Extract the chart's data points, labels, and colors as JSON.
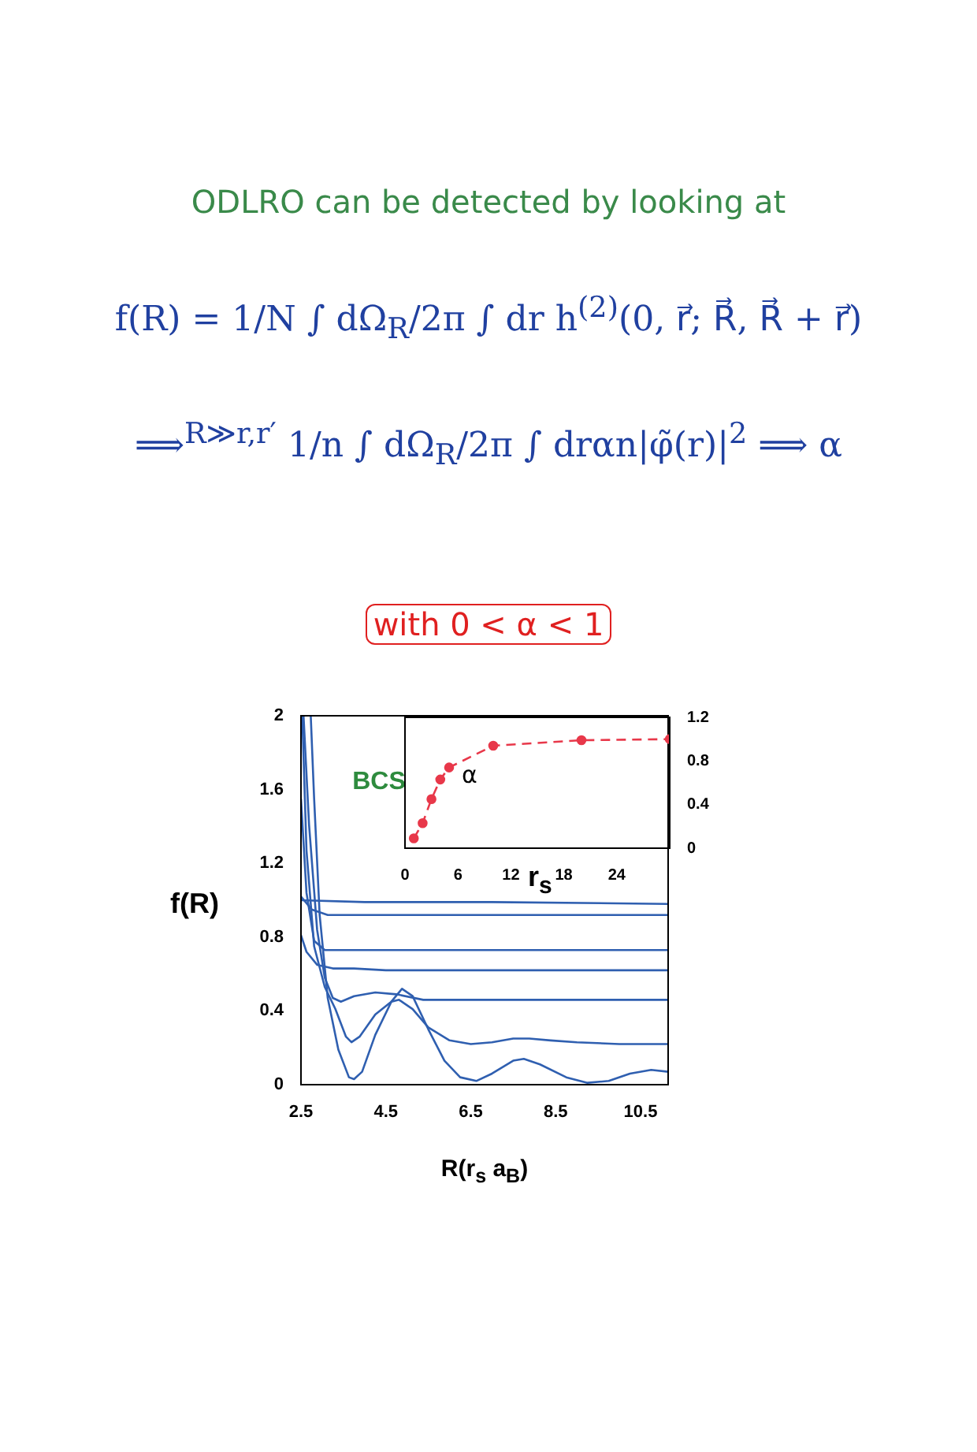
{
  "chart_data": [
    {
      "type": "line",
      "title": "ODLRO can be detected by looking at",
      "annotations": [
        "f(R) = 1/N ∫ dΩ$_{R}$/2π ∫ dr h$^{(2)}$(0, r⃗; R⃗, R⃗ + r⃗)",
        "⟹$^{R≫r,r′}$ 1/n ∫ dΩ$_{R}$/2π ∫ drαn|φ̃(r)|$^{2}$ ⟹ α",
        "with 0 < α < 1",
        "BCS"
      ],
      "xlabel": "R(r$_{s}$ a$_{B}$)",
      "ylabel": "f(R)",
      "xlim": [
        2.5,
        11.15
      ],
      "xticks": [
        2.5,
        4.5,
        6.5,
        8.5,
        10.5
      ],
      "ylim": [
        0,
        2
      ],
      "yticks": [
        0,
        0.4,
        0.8,
        1.2,
        1.6,
        2
      ],
      "grid": false,
      "legend": false,
      "marker": "none",
      "series": [
        {
          "color": "#2f5fb0",
          "x": [
            2.5,
            4.0,
            7.0,
            11.15
          ],
          "values": [
            1.0,
            0.99,
            0.99,
            0.98
          ]
        },
        {
          "color": "#2f5fb0",
          "x": [
            2.5,
            2.75,
            3.13,
            6.0,
            11.15
          ],
          "values": [
            1.02,
            0.95,
            0.92,
            0.92,
            0.92
          ]
        },
        {
          "color": "#2f5fb0",
          "x": [
            2.5,
            2.63,
            2.81,
            3.06,
            3.75,
            11.15
          ],
          "values": [
            1.55,
            1.04,
            0.78,
            0.73,
            0.73,
            0.73
          ]
        },
        {
          "color": "#2f5fb0",
          "x": [
            2.5,
            2.63,
            2.88,
            3.25,
            3.75,
            4.5,
            11.15
          ],
          "values": [
            0.81,
            0.72,
            0.65,
            0.63,
            0.63,
            0.62,
            0.62
          ]
        },
        {
          "color": "#2f5fb0",
          "x": [
            2.56,
            2.69,
            2.88,
            3.06,
            3.25,
            3.44,
            3.75,
            4.25,
            4.75,
            5.38,
            6.25,
            11.15
          ],
          "values": [
            2.0,
            1.41,
            0.84,
            0.58,
            0.47,
            0.45,
            0.48,
            0.5,
            0.49,
            0.46,
            0.46,
            0.46
          ]
        },
        {
          "color": "#2f5fb0",
          "x": [
            2.53,
            2.63,
            2.81,
            3.06,
            3.31,
            3.56,
            3.69,
            3.88,
            4.25,
            4.63,
            4.81,
            5.13,
            5.5,
            6.0,
            6.5,
            7.0,
            7.5,
            7.88,
            8.38,
            9.0,
            10.0,
            11.15
          ],
          "values": [
            2.0,
            1.27,
            0.75,
            0.53,
            0.41,
            0.26,
            0.23,
            0.26,
            0.38,
            0.45,
            0.46,
            0.41,
            0.31,
            0.24,
            0.22,
            0.23,
            0.25,
            0.25,
            0.24,
            0.23,
            0.22,
            0.22
          ]
        },
        {
          "color": "#2f5fb0",
          "x": [
            2.73,
            2.81,
            2.94,
            3.13,
            3.38,
            3.63,
            3.75,
            3.94,
            4.25,
            4.63,
            4.88,
            5.13,
            5.5,
            5.88,
            6.25,
            6.63,
            7.0,
            7.5,
            7.75,
            8.13,
            8.75,
            9.25,
            9.75,
            10.25,
            10.75,
            11.15
          ],
          "values": [
            2.0,
            1.55,
            0.92,
            0.47,
            0.19,
            0.04,
            0.03,
            0.07,
            0.27,
            0.45,
            0.52,
            0.48,
            0.3,
            0.13,
            0.04,
            0.02,
            0.06,
            0.13,
            0.14,
            0.11,
            0.04,
            0.01,
            0.02,
            0.06,
            0.08,
            0.07
          ]
        }
      ]
    },
    {
      "type": "line",
      "xlabel": "r$_{s}$",
      "annotations": [
        {
          "text": "α",
          "x": 5,
          "y": 0.74
        }
      ],
      "xlim": [
        0,
        30
      ],
      "xticks": [
        0,
        6,
        12,
        18,
        24
      ],
      "ylim": [
        0,
        1.2
      ],
      "yticks": [
        0,
        0.4,
        0.8,
        1.2
      ],
      "grid": false,
      "legend": false,
      "marker": "circle",
      "line_style": "dashed",
      "series": [
        {
          "color": "#e8384a",
          "x": [
            1,
            2,
            3,
            4,
            5,
            10,
            20,
            30
          ],
          "values": [
            0.09,
            0.23,
            0.45,
            0.63,
            0.74,
            0.94,
            0.99,
            1.0
          ]
        }
      ]
    }
  ]
}
